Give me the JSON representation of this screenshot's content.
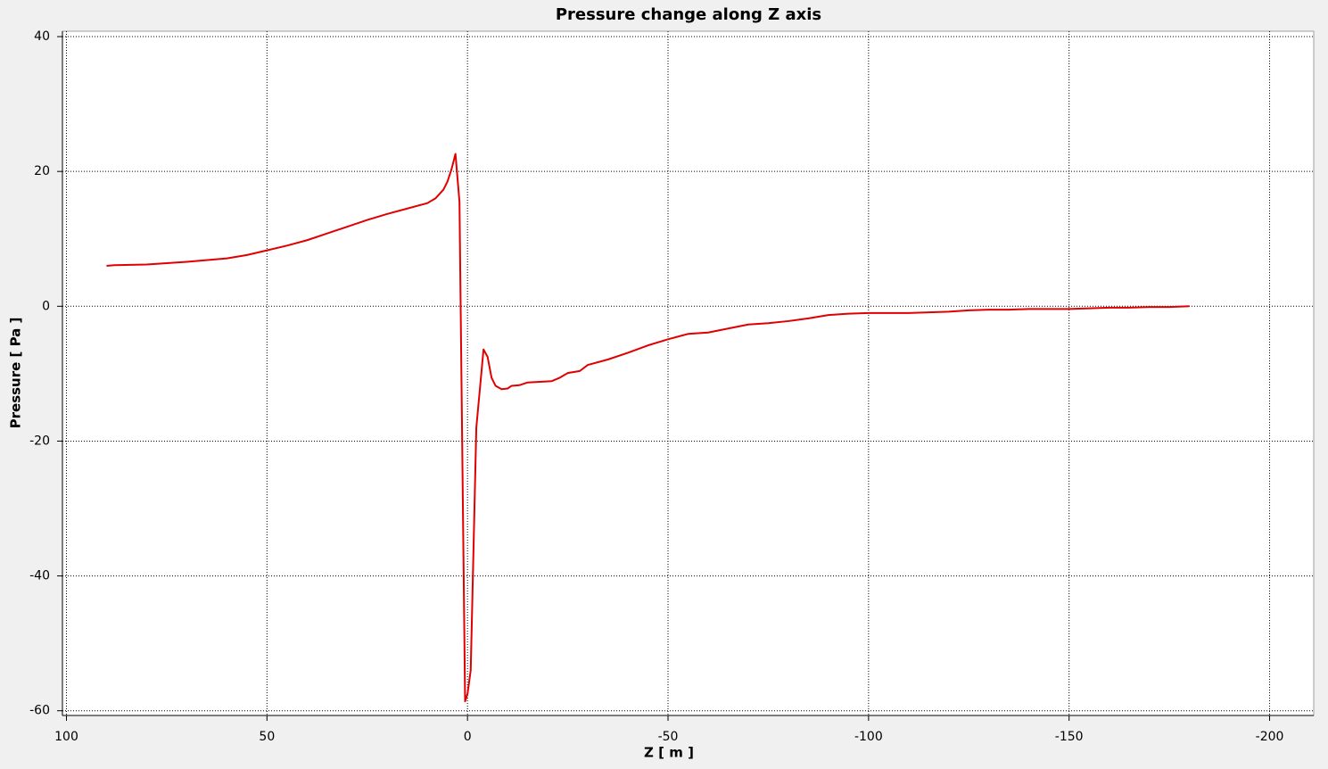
{
  "chart_data": {
    "type": "line",
    "title": "Pressure change along Z axis",
    "x_label": "Z [ m ]",
    "y_label": "Pressure [ Pa ]",
    "color": "#e00000",
    "grid": true,
    "xlim": [
      101,
      -211
    ],
    "ylim": [
      -60.7,
      40.8
    ],
    "xticks": [
      100,
      50,
      0,
      -50,
      -100,
      -150,
      -200
    ],
    "yticks": [
      40,
      20,
      0,
      -20,
      -40,
      -60
    ],
    "x": [
      90,
      88,
      80,
      70,
      60,
      55,
      50,
      45,
      40,
      35,
      30,
      25,
      20,
      15,
      10,
      8,
      6,
      5,
      4,
      3,
      2,
      0.6,
      0,
      -0.8,
      -2.2,
      -4,
      -5,
      -6,
      -7,
      -8.5,
      -10,
      -11,
      -13,
      -15,
      -18,
      -21,
      -23,
      -25,
      -28,
      -30,
      -35,
      -40,
      -45,
      -50,
      -55,
      -60,
      -65,
      -70,
      -75,
      -80,
      -85,
      -90,
      -95,
      -100,
      -110,
      -115,
      -120,
      -125,
      -130,
      -135,
      -140,
      -145,
      -150,
      -155,
      -160,
      -165,
      -170,
      -175,
      -180
    ],
    "values": [
      6.0,
      6.1,
      6.2,
      6.6,
      7.1,
      7.6,
      8.3,
      9.0,
      9.8,
      10.8,
      11.8,
      12.8,
      13.7,
      14.5,
      15.3,
      16.0,
      17.3,
      18.5,
      20.3,
      22.6,
      15.5,
      -58.6,
      -57.5,
      -54,
      -18,
      -6.4,
      -7.5,
      -10.6,
      -11.8,
      -12.3,
      -12.2,
      -11.8,
      -11.7,
      -11.3,
      -11.2,
      -11.1,
      -10.6,
      -9.9,
      -9.6,
      -8.7,
      -7.9,
      -6.9,
      -5.8,
      -4.9,
      -4.1,
      -3.9,
      -3.3,
      -2.7,
      -2.5,
      -2.2,
      -1.8,
      -1.3,
      -1.1,
      -1.0,
      -1.0,
      -0.9,
      -0.8,
      -0.6,
      -0.5,
      -0.5,
      -0.4,
      -0.4,
      -0.4,
      -0.3,
      -0.2,
      -0.2,
      -0.1,
      -0.1,
      0.0
    ]
  }
}
